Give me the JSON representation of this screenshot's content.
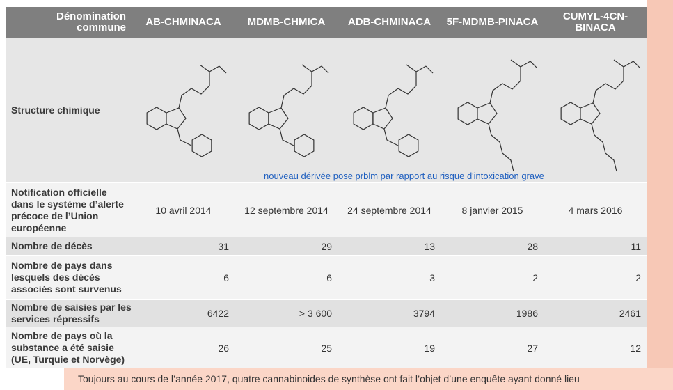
{
  "table": {
    "header": [
      "Dénomination commune",
      "AB-CHMINACA",
      "MDMB-CHMICA",
      "ADB-CHMINACA",
      "5F-MDMB-PINACA",
      "CUMYL-4CN-BINACA"
    ],
    "structure_label": "Structure chimique",
    "annotation": "nouveau dérivée pose prblm par rapport au risque d'intoxication grave",
    "rows": [
      [
        "Notification officielle dans le système d’alerte précoce de l’Union européenne",
        "10 avril 2014",
        "12 septembre 2014",
        "24 septembre 2014",
        "8 janvier 2015",
        "4 mars 2016"
      ],
      [
        "Nombre de décès",
        31,
        29,
        13,
        28,
        11
      ],
      [
        "Nombre de pays dans lesquels des décès associés sont survenus",
        6,
        6,
        3,
        2,
        2
      ],
      [
        "Nombre de saisies par les services répressifs",
        6422,
        "> 3 600",
        3794,
        1986,
        2461
      ],
      [
        "Nombre de pays où la substance a été saisie (UE, Turquie et Norvège)",
        26,
        25,
        19,
        27,
        12
      ]
    ]
  },
  "footer": "Toujours au cours de l’année 2017, quatre cannabinoides de synthèse ont fait l’objet d’une enquête ayant donné lieu"
}
